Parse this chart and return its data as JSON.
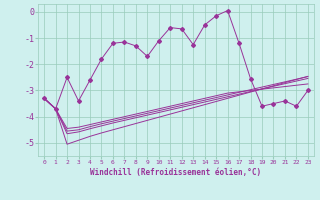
{
  "xlabel": "Windchill (Refroidissement éolien,°C)",
  "bg_color": "#cff0ee",
  "grid_color": "#99ccbb",
  "line_color": "#993399",
  "xlim": [
    -0.5,
    23.5
  ],
  "ylim": [
    -5.5,
    0.3
  ],
  "yticks": [
    0,
    -1,
    -2,
    -3,
    -4,
    -5
  ],
  "xticks": [
    0,
    1,
    2,
    3,
    4,
    5,
    6,
    7,
    8,
    9,
    10,
    11,
    12,
    13,
    14,
    15,
    16,
    17,
    18,
    19,
    20,
    21,
    22,
    23
  ],
  "main_line_x": [
    0,
    1,
    2,
    3,
    4,
    5,
    6,
    7,
    8,
    9,
    10,
    11,
    12,
    13,
    14,
    15,
    16,
    17,
    18,
    19,
    20,
    21,
    22,
    23
  ],
  "main_line_y": [
    -3.3,
    -3.7,
    -2.5,
    -3.4,
    -2.6,
    -1.8,
    -1.2,
    -1.15,
    -1.3,
    -1.7,
    -1.1,
    -0.6,
    -0.65,
    -1.25,
    -0.5,
    -0.15,
    0.05,
    -1.2,
    -2.55,
    -3.6,
    -3.5,
    -3.4,
    -3.6,
    -3.0
  ],
  "smooth_lines": [
    [
      -3.3,
      -3.7,
      -4.45,
      -4.4,
      -4.3,
      -4.2,
      -4.1,
      -4.0,
      -3.9,
      -3.8,
      -3.7,
      -3.6,
      -3.5,
      -3.4,
      -3.3,
      -3.2,
      -3.1,
      -3.05,
      -3.0,
      -2.95,
      -2.9,
      -2.85,
      -2.8,
      -2.75
    ],
    [
      -3.3,
      -3.7,
      -4.55,
      -4.5,
      -4.38,
      -4.27,
      -4.17,
      -4.07,
      -3.97,
      -3.87,
      -3.77,
      -3.67,
      -3.57,
      -3.47,
      -3.37,
      -3.27,
      -3.17,
      -3.07,
      -2.97,
      -2.87,
      -2.77,
      -2.67,
      -2.57,
      -2.47
    ],
    [
      -3.3,
      -3.7,
      -4.65,
      -4.58,
      -4.46,
      -4.35,
      -4.24,
      -4.14,
      -4.04,
      -3.94,
      -3.84,
      -3.74,
      -3.64,
      -3.54,
      -3.44,
      -3.34,
      -3.24,
      -3.14,
      -3.04,
      -2.94,
      -2.84,
      -2.74,
      -2.64,
      -2.54
    ],
    [
      -3.3,
      -3.7,
      -5.05,
      -4.9,
      -4.75,
      -4.62,
      -4.5,
      -4.38,
      -4.26,
      -4.14,
      -4.02,
      -3.9,
      -3.78,
      -3.66,
      -3.54,
      -3.42,
      -3.3,
      -3.18,
      -3.06,
      -2.94,
      -2.82,
      -2.7,
      -2.58,
      -2.46
    ]
  ]
}
